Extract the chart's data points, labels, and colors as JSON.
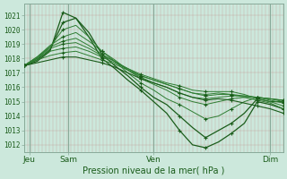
{
  "title": "Pression niveau de la mer( hPa )",
  "ylabel_values": [
    1012,
    1013,
    1014,
    1015,
    1016,
    1017,
    1018,
    1019,
    1020,
    1021
  ],
  "ylim": [
    1011.5,
    1021.8
  ],
  "xlim": [
    0,
    1
  ],
  "bg_color": "#cce8dc",
  "grid_minor_color": "#b8d4c8",
  "grid_major_color": "#88aa99",
  "line_color_dark": "#1a5c1a",
  "line_color_mid": "#2e7d32",
  "xtick_labels": [
    "Jeu",
    "Sam",
    "Ven",
    "Dim"
  ],
  "xtick_positions": [
    0.02,
    0.17,
    0.5,
    0.95
  ],
  "n_minor_v": 72,
  "series": [
    [
      1017.5,
      1017.8,
      1018.5,
      1021.2,
      1020.8,
      1019.5,
      1018.0,
      1017.3,
      1016.5,
      1015.8,
      1015.0,
      1014.2,
      1013.0,
      1012.0,
      1011.8,
      1012.2,
      1012.8,
      1013.5,
      1015.0,
      1014.8,
      1014.5
    ],
    [
      1017.5,
      1017.9,
      1018.6,
      1020.5,
      1020.8,
      1019.8,
      1018.3,
      1017.5,
      1016.8,
      1016.0,
      1015.3,
      1014.8,
      1014.0,
      1013.2,
      1012.5,
      1013.0,
      1013.5,
      1014.2,
      1015.2,
      1015.0,
      1015.0
    ],
    [
      1017.5,
      1018.0,
      1018.8,
      1020.0,
      1020.3,
      1019.5,
      1018.5,
      1017.8,
      1017.0,
      1016.3,
      1015.8,
      1015.2,
      1014.8,
      1014.3,
      1013.8,
      1014.0,
      1014.5,
      1015.0,
      1015.3,
      1015.2,
      1015.1
    ],
    [
      1017.5,
      1018.1,
      1018.9,
      1019.5,
      1019.8,
      1019.2,
      1018.5,
      1017.9,
      1017.2,
      1016.6,
      1016.2,
      1015.8,
      1015.3,
      1015.0,
      1014.8,
      1015.0,
      1015.2,
      1015.3,
      1015.3,
      1015.2,
      1015.1
    ],
    [
      1017.5,
      1018.1,
      1018.8,
      1019.2,
      1019.4,
      1018.9,
      1018.3,
      1017.8,
      1017.2,
      1016.7,
      1016.3,
      1016.0,
      1015.6,
      1015.3,
      1015.2,
      1015.3,
      1015.4,
      1015.4,
      1015.3,
      1015.2,
      1015.0
    ],
    [
      1017.5,
      1018.0,
      1018.7,
      1019.0,
      1019.1,
      1018.7,
      1018.2,
      1017.8,
      1017.3,
      1016.8,
      1016.5,
      1016.2,
      1015.9,
      1015.6,
      1015.4,
      1015.5,
      1015.5,
      1015.4,
      1015.3,
      1015.1,
      1014.9
    ],
    [
      1017.5,
      1018.0,
      1018.5,
      1018.7,
      1018.8,
      1018.5,
      1018.1,
      1017.7,
      1017.3,
      1016.9,
      1016.6,
      1016.3,
      1016.1,
      1015.8,
      1015.7,
      1015.7,
      1015.7,
      1015.5,
      1015.2,
      1015.0,
      1014.7
    ],
    [
      1017.5,
      1017.9,
      1018.2,
      1018.4,
      1018.5,
      1018.2,
      1017.9,
      1017.6,
      1017.2,
      1016.8,
      1016.5,
      1016.2,
      1015.9,
      1015.6,
      1015.5,
      1015.6,
      1015.5,
      1015.3,
      1015.1,
      1014.9,
      1014.5
    ],
    [
      1017.5,
      1017.7,
      1017.9,
      1018.1,
      1018.1,
      1017.9,
      1017.7,
      1017.4,
      1017.0,
      1016.6,
      1016.3,
      1016.0,
      1015.6,
      1015.3,
      1015.1,
      1015.2,
      1015.1,
      1014.9,
      1014.7,
      1014.5,
      1014.2
    ]
  ],
  "marker_indices": [
    0,
    3,
    6,
    9,
    12,
    14,
    16,
    18,
    20
  ],
  "marker_size": 3.5
}
